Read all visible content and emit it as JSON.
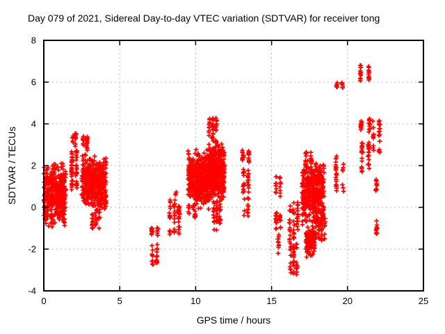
{
  "chart_data": {
    "type": "scatter",
    "title": "Day 079 of 2021, Sidereal Day-to-day VTEC variation (SDTVAR) for receiver tong",
    "xlabel": "GPS time / hours",
    "ylabel": "SDTVAR / TECUs",
    "xlim": [
      0,
      25
    ],
    "ylim": [
      -4,
      8
    ],
    "xticks": [
      0,
      5,
      10,
      15,
      20,
      25
    ],
    "yticks": [
      -4,
      -2,
      0,
      2,
      4,
      6,
      8
    ],
    "grid": "dotted",
    "legend": "none",
    "marker": "plus",
    "marker_color": "#ff0000",
    "grid_color": "#b8b8b8",
    "border_color": "#000000",
    "background_color": "#ffffff",
    "series_name": "SDTVAR",
    "clusters": [
      {
        "x": [
          0.0,
          1.45
        ],
        "y": [
          -1.0,
          2.2
        ],
        "n": 380,
        "dist": "center"
      },
      {
        "x": [
          1.85,
          2.15
        ],
        "y": [
          0.8,
          2.75
        ],
        "n": 60,
        "cols": 2
      },
      {
        "x": [
          1.9,
          2.1
        ],
        "y": [
          2.9,
          3.55
        ],
        "n": 16,
        "cols": 2
      },
      {
        "x": [
          2.5,
          4.1
        ],
        "y": [
          -0.2,
          2.6
        ],
        "n": 430,
        "dist": "center"
      },
      {
        "x": [
          2.6,
          2.85
        ],
        "y": [
          2.6,
          3.4
        ],
        "n": 24,
        "cols": 2
      },
      {
        "x": [
          3.2,
          3.65
        ],
        "y": [
          -1.05,
          -0.15
        ],
        "n": 30,
        "cols": 3
      },
      {
        "x": [
          7.1,
          7.5
        ],
        "y": [
          -1.35,
          -0.95
        ],
        "n": 18,
        "cols": 2
      },
      {
        "x": [
          7.15,
          7.45
        ],
        "y": [
          -2.75,
          -1.7
        ],
        "n": 22,
        "cols": 2
      },
      {
        "x": [
          8.3,
          8.9
        ],
        "y": [
          -1.3,
          0.4
        ],
        "n": 55,
        "cols": 3
      },
      {
        "x": [
          8.6,
          8.8
        ],
        "y": [
          0.6,
          0.8
        ],
        "n": 3,
        "cols": 1
      },
      {
        "x": [
          9.55,
          9.95
        ],
        "y": [
          -0.55,
          0.1
        ],
        "n": 15,
        "cols": 2
      },
      {
        "x": [
          9.5,
          10.9
        ],
        "y": [
          -0.2,
          2.85
        ],
        "n": 430,
        "dist": "center"
      },
      {
        "x": [
          10.9,
          11.35
        ],
        "y": [
          3.1,
          4.3
        ],
        "n": 45,
        "cols": 3
      },
      {
        "x": [
          10.85,
          11.9
        ],
        "y": [
          0.3,
          3.2
        ],
        "n": 430,
        "dist": "center"
      },
      {
        "x": [
          11.2,
          11.6
        ],
        "y": [
          -1.1,
          0.3
        ],
        "n": 40,
        "cols": 3
      },
      {
        "x": [
          13.1,
          13.5
        ],
        "y": [
          2.15,
          2.75
        ],
        "n": 22,
        "cols": 2
      },
      {
        "x": [
          13.15,
          13.45
        ],
        "y": [
          0.65,
          1.85
        ],
        "n": 28,
        "cols": 2
      },
      {
        "x": [
          13.2,
          13.45
        ],
        "y": [
          -0.5,
          0.5
        ],
        "n": 12,
        "cols": 2
      },
      {
        "x": [
          15.3,
          15.55
        ],
        "y": [
          0.5,
          1.6
        ],
        "n": 16,
        "cols": 2
      },
      {
        "x": [
          15.3,
          15.55
        ],
        "y": [
          -1.1,
          -0.25
        ],
        "n": 22,
        "cols": 2
      },
      {
        "x": [
          15.35,
          15.55
        ],
        "y": [
          -2.3,
          -1.2
        ],
        "n": 10,
        "cols": 1
      },
      {
        "x": [
          16.2,
          16.7
        ],
        "y": [
          -1.65,
          0.3
        ],
        "n": 45,
        "cols": 3
      },
      {
        "x": [
          16.25,
          16.65
        ],
        "y": [
          -3.35,
          -1.7
        ],
        "n": 40,
        "cols": 3
      },
      {
        "x": [
          17.0,
          18.45
        ],
        "y": [
          -0.9,
          2.3
        ],
        "n": 430,
        "dist": "center"
      },
      {
        "x": [
          17.25,
          17.85
        ],
        "y": [
          -2.45,
          -0.85
        ],
        "n": 130,
        "dist": "center"
      },
      {
        "x": [
          17.9,
          18.5
        ],
        "y": [
          -1.6,
          -0.45
        ],
        "n": 50,
        "cols": 4
      },
      {
        "x": [
          17.25,
          17.6
        ],
        "y": [
          2.0,
          2.65
        ],
        "n": 25,
        "cols": 2
      },
      {
        "x": [
          19.25,
          19.7
        ],
        "y": [
          0.7,
          2.45
        ],
        "n": 28,
        "cols": 2
      },
      {
        "x": [
          19.3,
          19.65
        ],
        "y": [
          5.7,
          6.0
        ],
        "n": 14,
        "cols": 2
      },
      {
        "x": [
          20.85,
          21.4
        ],
        "y": [
          6.0,
          6.85
        ],
        "n": 26,
        "cols": 2
      },
      {
        "x": [
          20.9,
          21.45
        ],
        "y": [
          3.6,
          4.3
        ],
        "n": 22,
        "cols": 2
      },
      {
        "x": [
          20.95,
          21.4
        ],
        "y": [
          1.65,
          3.1
        ],
        "n": 40,
        "cols": 2
      },
      {
        "x": [
          21.7,
          22.1
        ],
        "y": [
          2.6,
          4.2
        ],
        "n": 26,
        "cols": 2
      },
      {
        "x": [
          21.75,
          22.05
        ],
        "y": [
          0.75,
          1.35
        ],
        "n": 12,
        "cols": 1
      },
      {
        "x": [
          21.8,
          22.05
        ],
        "y": [
          -1.4,
          -0.45
        ],
        "n": 10,
        "cols": 1
      }
    ]
  }
}
